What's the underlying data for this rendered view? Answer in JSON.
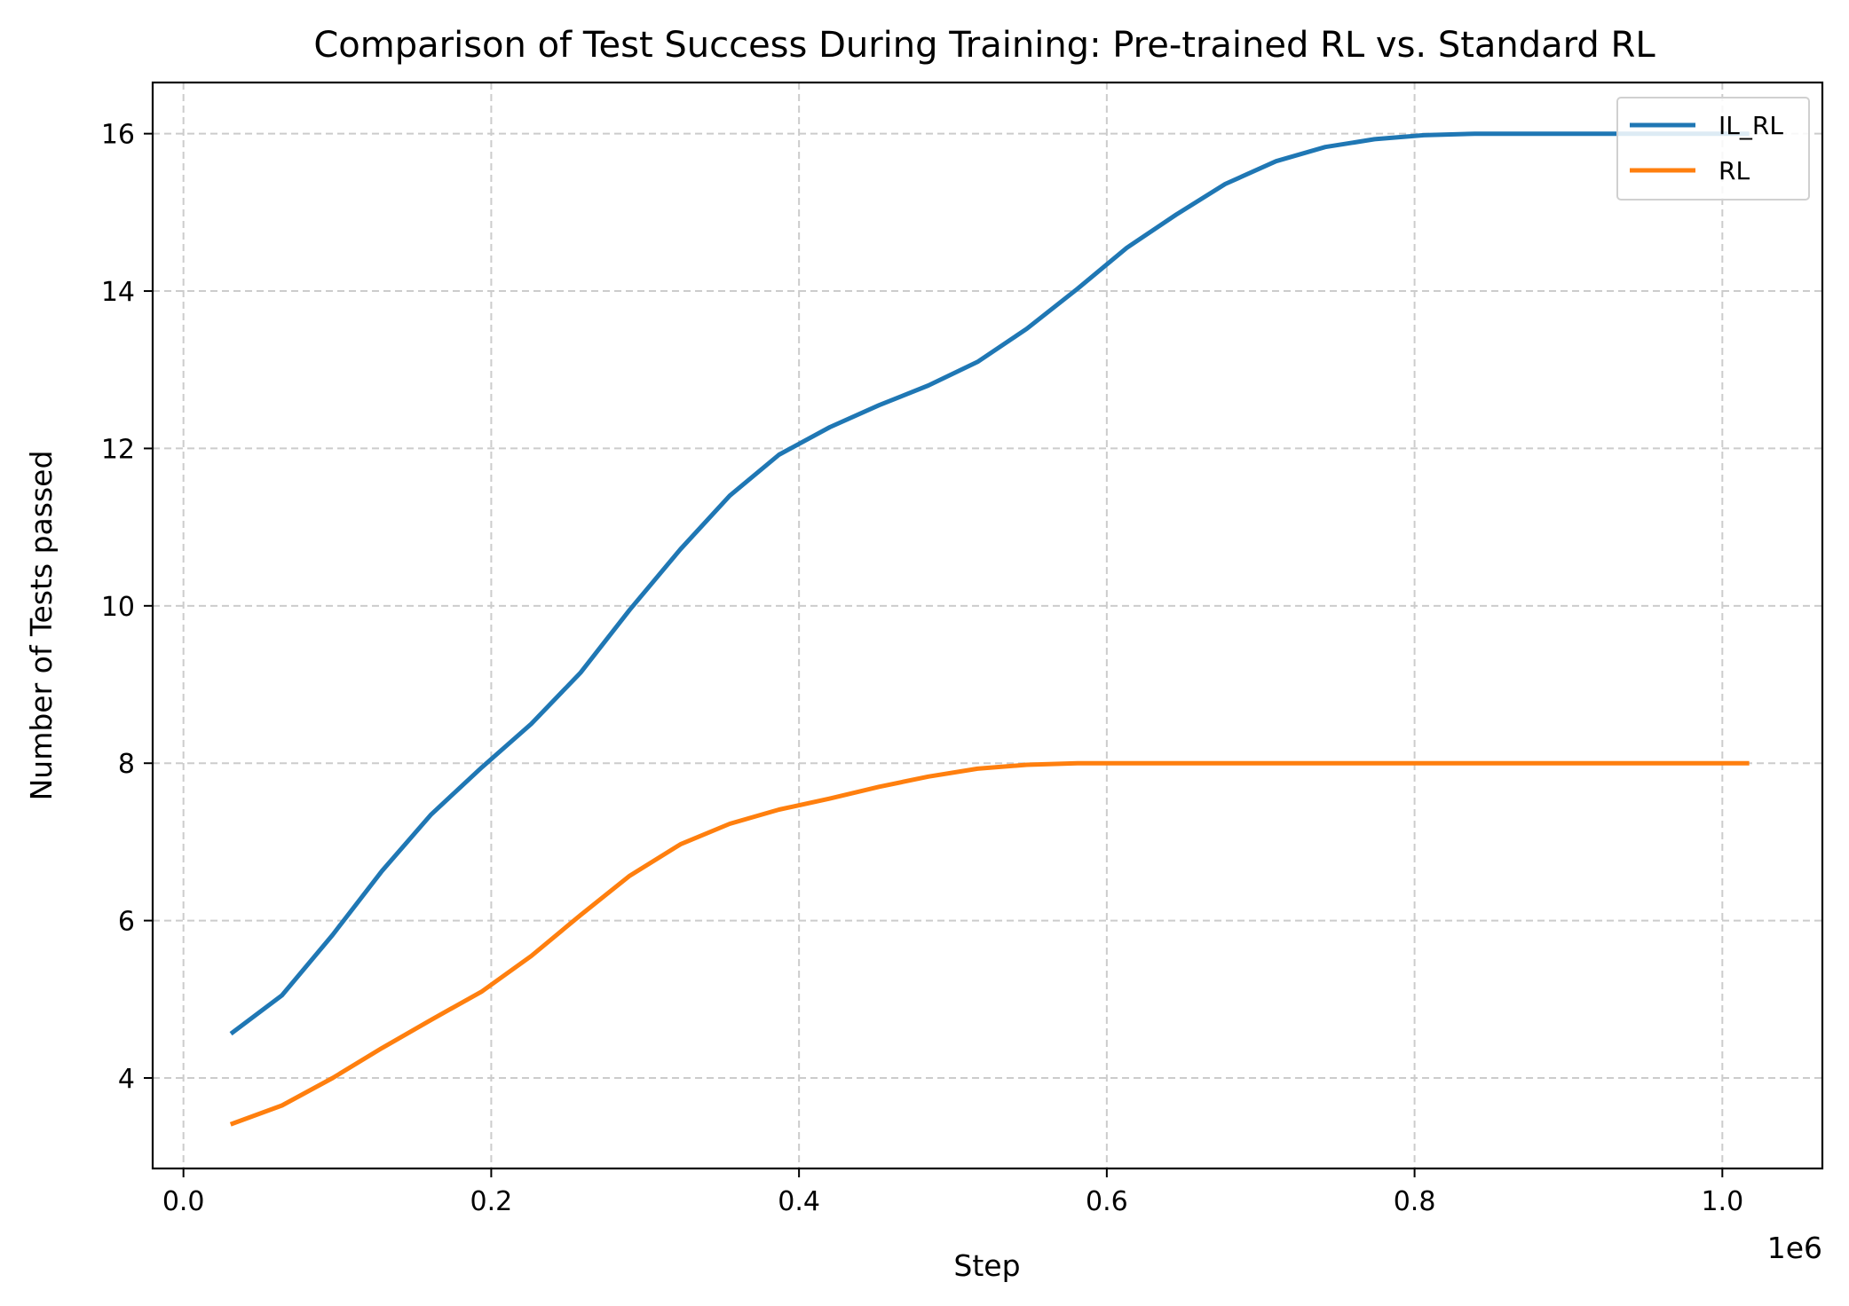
{
  "chart_data": {
    "type": "line",
    "title": "Comparison of Test Success During Training: Pre-trained RL vs. Standard RL",
    "xlabel": "Step",
    "ylabel": "Number of Tests passed",
    "x_offset_label": "1e6",
    "xlim": [
      -0.02,
      1.065
    ],
    "ylim": [
      2.85,
      16.65
    ],
    "x_ticks": [
      0.0,
      0.2,
      0.4,
      0.6,
      0.8,
      1.0
    ],
    "x_tick_labels": [
      "0.0",
      "0.2",
      "0.4",
      "0.6",
      "0.8",
      "1.0"
    ],
    "y_ticks": [
      4,
      6,
      8,
      10,
      12,
      14,
      16
    ],
    "y_tick_labels": [
      "4",
      "6",
      "8",
      "10",
      "12",
      "14",
      "16"
    ],
    "grid": true,
    "legend_position": "top-right",
    "x": [
      0.032,
      0.064,
      0.097,
      0.129,
      0.161,
      0.194,
      0.226,
      0.258,
      0.29,
      0.323,
      0.355,
      0.387,
      0.42,
      0.452,
      0.484,
      0.516,
      0.548,
      0.581,
      0.613,
      0.645,
      0.677,
      0.71,
      0.742,
      0.774,
      0.806,
      0.839,
      0.871,
      0.903,
      0.935,
      0.968,
      1.0,
      1.016
    ],
    "series": [
      {
        "name": "IL_RL",
        "color": "#1f77b4",
        "values": [
          4.58,
          5.05,
          5.82,
          6.63,
          7.35,
          7.95,
          8.5,
          9.15,
          9.95,
          10.72,
          11.4,
          11.92,
          12.27,
          12.55,
          12.8,
          13.1,
          13.52,
          14.03,
          14.55,
          14.97,
          15.36,
          15.65,
          15.83,
          15.93,
          15.98,
          16.0,
          16.0,
          16.0,
          16.0,
          16.0,
          16.0,
          16.0
        ]
      },
      {
        "name": "RL",
        "color": "#ff7f0e",
        "values": [
          3.42,
          3.65,
          4.0,
          4.38,
          4.74,
          5.1,
          5.55,
          6.07,
          6.57,
          6.97,
          7.23,
          7.41,
          7.55,
          7.7,
          7.83,
          7.93,
          7.98,
          8.0,
          8.0,
          8.0,
          8.0,
          8.0,
          8.0,
          8.0,
          8.0,
          8.0,
          8.0,
          8.0,
          8.0,
          8.0,
          8.0,
          8.0
        ]
      }
    ]
  }
}
